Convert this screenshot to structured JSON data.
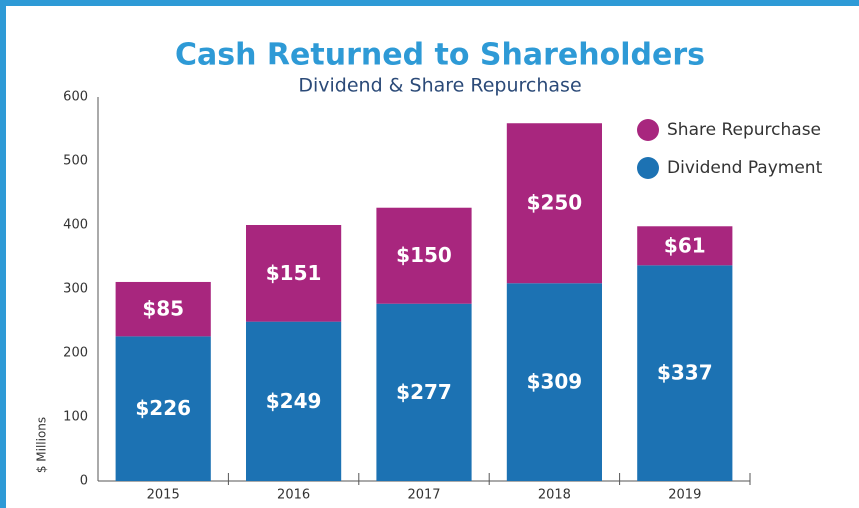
{
  "chart_data": {
    "type": "stacked_bar",
    "title": "Cash Returned to Shareholders",
    "subtitle": "Dividend & Share Repurchase",
    "y_label": "$ Millions",
    "categories": [
      "2015",
      "2016",
      "2017",
      "2018",
      "2019"
    ],
    "series": [
      {
        "name": "Dividend Payment",
        "color": "#1c72b3",
        "values": [
          226,
          249,
          277,
          309,
          337
        ],
        "value_labels": [
          "$226",
          "$249",
          "$277",
          "$309",
          "$337"
        ]
      },
      {
        "name": "Share Repurchase",
        "color": "#a8267e",
        "values": [
          85,
          151,
          150,
          250,
          61
        ],
        "value_labels": [
          "$85",
          "$151",
          "$150",
          "$250",
          "$61"
        ]
      }
    ],
    "ylim": [
      0,
      600
    ],
    "yticks": [
      0,
      100,
      200,
      300,
      400,
      500,
      600
    ],
    "legend": "upper right"
  }
}
